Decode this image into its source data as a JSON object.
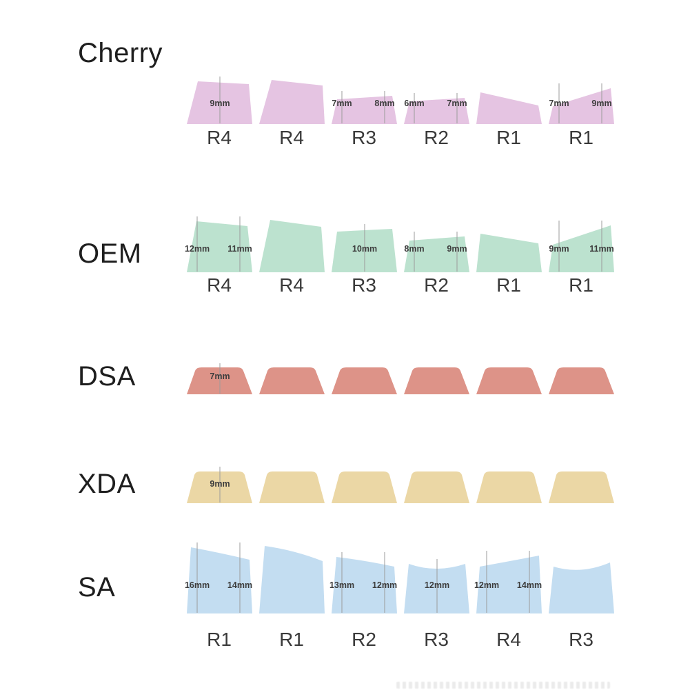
{
  "diagram": {
    "background": "#ffffff",
    "dimension_line_color": "#9b9b9b",
    "measurement_text_color": "#3d3d3d"
  },
  "profiles": [
    {
      "name": "Cherry",
      "color": "#e5c4e2",
      "row_labels": [
        "R4",
        "R4",
        "R3",
        "R2",
        "R1",
        "R1"
      ],
      "caps": [
        {
          "measurements": [
            {
              "label": "9mm",
              "anchor": "center"
            }
          ]
        },
        {
          "measurements": []
        },
        {
          "measurements": [
            {
              "label": "7mm",
              "anchor": "left"
            },
            {
              "label": "8mm",
              "anchor": "right"
            }
          ]
        },
        {
          "measurements": [
            {
              "label": "6mm",
              "anchor": "left"
            },
            {
              "label": "7mm",
              "anchor": "right"
            }
          ]
        },
        {
          "measurements": []
        },
        {
          "measurements": [
            {
              "label": "7mm",
              "anchor": "left"
            },
            {
              "label": "9mm",
              "anchor": "right"
            }
          ]
        }
      ]
    },
    {
      "name": "OEM",
      "color": "#bce2cf",
      "row_labels": [
        "R4",
        "R4",
        "R3",
        "R2",
        "R1",
        "R1"
      ],
      "caps": [
        {
          "measurements": [
            {
              "label": "12mm",
              "anchor": "left"
            },
            {
              "label": "11mm",
              "anchor": "right"
            }
          ]
        },
        {
          "measurements": []
        },
        {
          "measurements": [
            {
              "label": "10mm",
              "anchor": "center"
            }
          ]
        },
        {
          "measurements": [
            {
              "label": "8mm",
              "anchor": "left"
            },
            {
              "label": "9mm",
              "anchor": "right"
            }
          ]
        },
        {
          "measurements": []
        },
        {
          "measurements": [
            {
              "label": "9mm",
              "anchor": "left"
            },
            {
              "label": "11mm",
              "anchor": "right"
            }
          ]
        }
      ]
    },
    {
      "name": "DSA",
      "color": "#dd9388",
      "row_labels": [],
      "caps": [
        {
          "measurements": [
            {
              "label": "7mm",
              "anchor": "center"
            }
          ]
        },
        {
          "measurements": []
        },
        {
          "measurements": []
        },
        {
          "measurements": []
        },
        {
          "measurements": []
        },
        {
          "measurements": []
        }
      ]
    },
    {
      "name": "XDA",
      "color": "#ebd7a5",
      "row_labels": [],
      "caps": [
        {
          "measurements": [
            {
              "label": "9mm",
              "anchor": "center"
            }
          ]
        },
        {
          "measurements": []
        },
        {
          "measurements": []
        },
        {
          "measurements": []
        },
        {
          "measurements": []
        },
        {
          "measurements": []
        }
      ]
    },
    {
      "name": "SA",
      "color": "#c3ddf1",
      "row_labels": [
        "R1",
        "R1",
        "R2",
        "R3",
        "R4",
        "R3"
      ],
      "caps": [
        {
          "measurements": [
            {
              "label": "16mm",
              "anchor": "left"
            },
            {
              "label": "14mm",
              "anchor": "right"
            }
          ]
        },
        {
          "measurements": []
        },
        {
          "measurements": [
            {
              "label": "13mm",
              "anchor": "left"
            },
            {
              "label": "12mm",
              "anchor": "right"
            }
          ]
        },
        {
          "measurements": [
            {
              "label": "12mm",
              "anchor": "center"
            }
          ]
        },
        {
          "measurements": [
            {
              "label": "12mm",
              "anchor": "left"
            },
            {
              "label": "14mm",
              "anchor": "right"
            }
          ]
        },
        {
          "measurements": []
        }
      ]
    }
  ]
}
